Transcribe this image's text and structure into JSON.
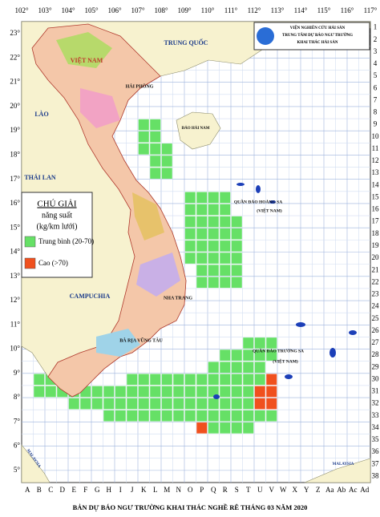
{
  "header": {
    "lines": [
      "VIỆN NGHIÊN CỨU HẢI SẢN",
      "TRUNG TÂM DỰ BÁO NGƯ TRƯỜNG",
      "KHAI THÁC HẢI SẢN"
    ]
  },
  "axes": {
    "longitudes": [
      "102°",
      "103°",
      "104°",
      "105°",
      "106°",
      "107°",
      "108°",
      "109°",
      "110°",
      "111°",
      "112°",
      "113°",
      "114°",
      "115°",
      "116°",
      "117°"
    ],
    "latitudes": [
      "23°",
      "22°",
      "21°",
      "20°",
      "19°",
      "18°",
      "17°",
      "16°",
      "15°",
      "14°",
      "13°",
      "12°",
      "11°",
      "10°",
      "9°",
      "8°",
      "7°",
      "6°",
      "5°"
    ],
    "rows": [
      1,
      2,
      3,
      4,
      5,
      6,
      7,
      8,
      9,
      10,
      11,
      12,
      13,
      14,
      15,
      16,
      17,
      18,
      19,
      20,
      21,
      22,
      23,
      24,
      25,
      26,
      27,
      28,
      29,
      30,
      31,
      32,
      33,
      34,
      35,
      36,
      37,
      38
    ],
    "columns": [
      "A",
      "B",
      "C",
      "D",
      "E",
      "F",
      "G",
      "H",
      "I",
      "J",
      "K",
      "L",
      "M",
      "N",
      "O",
      "P",
      "Q",
      "R",
      "S",
      "T",
      "U",
      "V",
      "W",
      "X",
      "Y",
      "Z",
      "Aa",
      "Ab",
      "Ac",
      "Ad"
    ]
  },
  "legend": {
    "title": "CHÚ GIẢI",
    "subtitle": "năng suất",
    "unit": "(kg/km lưới)",
    "items": [
      {
        "label": "Trung bình (20-70)",
        "color": "#66e066"
      },
      {
        "label": "Cao (>70)",
        "color": "#f0501e"
      }
    ]
  },
  "places": [
    "TRUNG QUỐC",
    "VIỆT NAM",
    "LÀO",
    "THÁI LAN",
    "CAMPUCHIA",
    "HẢI PHÒNG",
    "ĐẢO HẢI NAM",
    "QUẦN ĐẢO HOÀNG SA",
    "(VIỆT NAM)",
    "NHA TRANG",
    "BÀ RỊA VŨNG TÀU",
    "QUẦN ĐẢO TRƯỜNG SA",
    "(VIỆT NAM)",
    "MALAYSIA",
    "MALAYSIA"
  ],
  "forecast": {
    "medium": [
      [
        "K",
        9
      ],
      [
        "L",
        9
      ],
      [
        "K",
        10
      ],
      [
        "L",
        10
      ],
      [
        "K",
        11
      ],
      [
        "L",
        11
      ],
      [
        "M",
        11
      ],
      [
        "L",
        12
      ],
      [
        "M",
        12
      ],
      [
        "L",
        13
      ],
      [
        "M",
        13
      ],
      [
        "O",
        15
      ],
      [
        "P",
        15
      ],
      [
        "Q",
        15
      ],
      [
        "R",
        15
      ],
      [
        "O",
        16
      ],
      [
        "P",
        16
      ],
      [
        "Q",
        16
      ],
      [
        "R",
        16
      ],
      [
        "O",
        17
      ],
      [
        "P",
        17
      ],
      [
        "Q",
        17
      ],
      [
        "R",
        17
      ],
      [
        "S",
        17
      ],
      [
        "O",
        18
      ],
      [
        "P",
        18
      ],
      [
        "Q",
        18
      ],
      [
        "R",
        18
      ],
      [
        "S",
        18
      ],
      [
        "O",
        19
      ],
      [
        "P",
        19
      ],
      [
        "Q",
        19
      ],
      [
        "R",
        19
      ],
      [
        "S",
        19
      ],
      [
        "O",
        20
      ],
      [
        "P",
        20
      ],
      [
        "Q",
        20
      ],
      [
        "R",
        20
      ],
      [
        "S",
        20
      ],
      [
        "P",
        21
      ],
      [
        "Q",
        21
      ],
      [
        "R",
        21
      ],
      [
        "S",
        21
      ],
      [
        "P",
        22
      ],
      [
        "Q",
        22
      ],
      [
        "R",
        22
      ],
      [
        "S",
        22
      ],
      [
        "T",
        27
      ],
      [
        "U",
        27
      ],
      [
        "V",
        27
      ],
      [
        "R",
        28
      ],
      [
        "S",
        28
      ],
      [
        "T",
        28
      ],
      [
        "U",
        28
      ],
      [
        "V",
        28
      ],
      [
        "Q",
        29
      ],
      [
        "R",
        29
      ],
      [
        "S",
        29
      ],
      [
        "T",
        29
      ],
      [
        "U",
        29
      ],
      [
        "B",
        30
      ],
      [
        "C",
        30
      ],
      [
        "D",
        30
      ],
      [
        "E",
        30
      ],
      [
        "J",
        30
      ],
      [
        "K",
        30
      ],
      [
        "L",
        30
      ],
      [
        "M",
        30
      ],
      [
        "N",
        30
      ],
      [
        "O",
        30
      ],
      [
        "P",
        30
      ],
      [
        "Q",
        30
      ],
      [
        "R",
        30
      ],
      [
        "S",
        30
      ],
      [
        "T",
        30
      ],
      [
        "U",
        30
      ],
      [
        "B",
        31
      ],
      [
        "C",
        31
      ],
      [
        "D",
        31
      ],
      [
        "E",
        31
      ],
      [
        "F",
        31
      ],
      [
        "G",
        31
      ],
      [
        "H",
        31
      ],
      [
        "I",
        31
      ],
      [
        "J",
        31
      ],
      [
        "K",
        31
      ],
      [
        "L",
        31
      ],
      [
        "M",
        31
      ],
      [
        "N",
        31
      ],
      [
        "O",
        31
      ],
      [
        "P",
        31
      ],
      [
        "Q",
        31
      ],
      [
        "R",
        31
      ],
      [
        "S",
        31
      ],
      [
        "T",
        31
      ],
      [
        "E",
        32
      ],
      [
        "F",
        32
      ],
      [
        "G",
        32
      ],
      [
        "H",
        32
      ],
      [
        "I",
        32
      ],
      [
        "J",
        32
      ],
      [
        "K",
        32
      ],
      [
        "L",
        32
      ],
      [
        "M",
        32
      ],
      [
        "N",
        32
      ],
      [
        "O",
        32
      ],
      [
        "P",
        32
      ],
      [
        "Q",
        32
      ],
      [
        "R",
        32
      ],
      [
        "S",
        32
      ],
      [
        "T",
        32
      ],
      [
        "H",
        33
      ],
      [
        "I",
        33
      ],
      [
        "J",
        33
      ],
      [
        "K",
        33
      ],
      [
        "L",
        33
      ],
      [
        "M",
        33
      ],
      [
        "N",
        33
      ],
      [
        "O",
        33
      ],
      [
        "P",
        33
      ],
      [
        "Q",
        33
      ],
      [
        "R",
        33
      ],
      [
        "S",
        33
      ],
      [
        "T",
        33
      ],
      [
        "U",
        33
      ],
      [
        "V",
        33
      ],
      [
        "Q",
        34
      ],
      [
        "R",
        34
      ],
      [
        "S",
        34
      ],
      [
        "T",
        34
      ]
    ],
    "high": [
      [
        "V",
        30
      ],
      [
        "U",
        31
      ],
      [
        "V",
        31
      ],
      [
        "U",
        32
      ],
      [
        "V",
        32
      ],
      [
        "P",
        34
      ]
    ]
  },
  "title": "BẢN DỰ BÁO NGƯ TRƯỜNG KHAI THÁC NGHỀ RÊ THÁNG 03 NĂM 2020"
}
